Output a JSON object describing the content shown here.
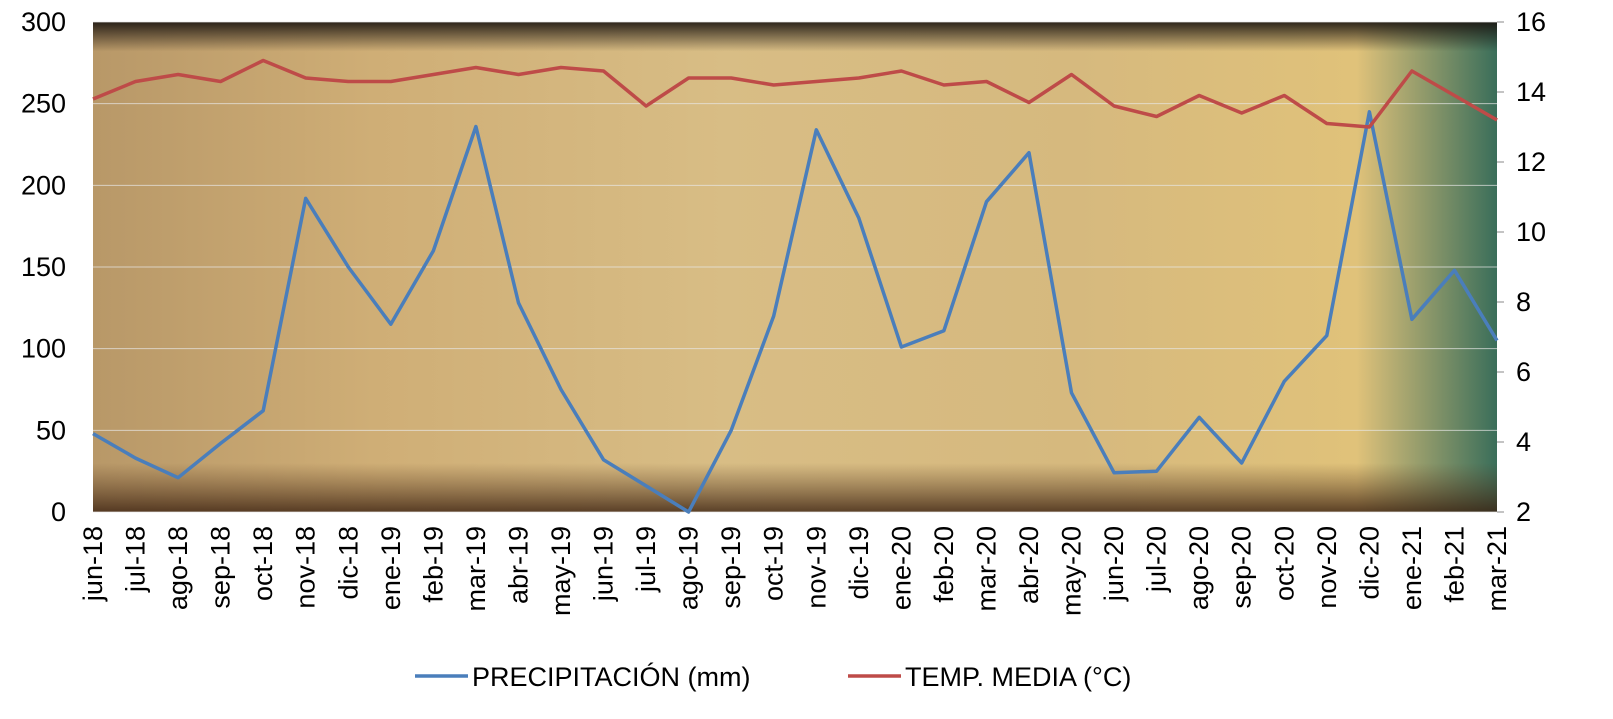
{
  "chart_data": {
    "type": "line",
    "categories": [
      "jun-18",
      "jul-18",
      "ago-18",
      "sep-18",
      "oct-18",
      "nov-18",
      "dic-18",
      "ene-19",
      "feb-19",
      "mar-19",
      "abr-19",
      "may-19",
      "jun-19",
      "jul-19",
      "ago-19",
      "sep-19",
      "oct-19",
      "nov-19",
      "dic-19",
      "ene-20",
      "feb-20",
      "mar-20",
      "abr-20",
      "may-20",
      "jun-20",
      "jul-20",
      "ago-20",
      "sep-20",
      "oct-20",
      "nov-20",
      "dic-20",
      "ene-21",
      "feb-21",
      "mar-21"
    ],
    "series": [
      {
        "name": "PRECIPITACIÓN (mm)",
        "color": "#4a7ebb",
        "values": [
          48,
          33,
          21,
          42,
          62,
          192,
          150,
          115,
          160,
          236,
          128,
          75,
          32,
          16,
          0,
          50,
          120,
          234,
          180,
          101,
          111,
          190,
          220,
          73,
          24,
          25,
          58,
          30,
          80,
          108,
          245,
          118,
          148,
          105
        ]
      },
      {
        "name": "TEMP. MEDIA (°C)",
        "color": "#be4b48",
        "axis": "y2",
        "values": [
          13.8,
          14.3,
          14.5,
          14.3,
          14.9,
          14.4,
          14.3,
          14.3,
          14.5,
          14.7,
          14.5,
          14.7,
          14.6,
          13.6,
          14.4,
          14.4,
          14.2,
          14.3,
          14.4,
          14.6,
          14.2,
          14.3,
          13.7,
          14.5,
          13.6,
          13.3,
          13.9,
          13.4,
          13.9,
          13.1,
          13.0,
          14.6,
          13.9,
          13.2
        ]
      }
    ],
    "ylim": [
      0,
      300
    ],
    "yticks": [
      0,
      50,
      100,
      150,
      200,
      250,
      300
    ],
    "y2lim": [
      2,
      16
    ],
    "y2ticks": [
      2,
      4,
      6,
      8,
      10,
      12,
      14,
      16
    ],
    "grid": true,
    "legend": "bottom"
  }
}
